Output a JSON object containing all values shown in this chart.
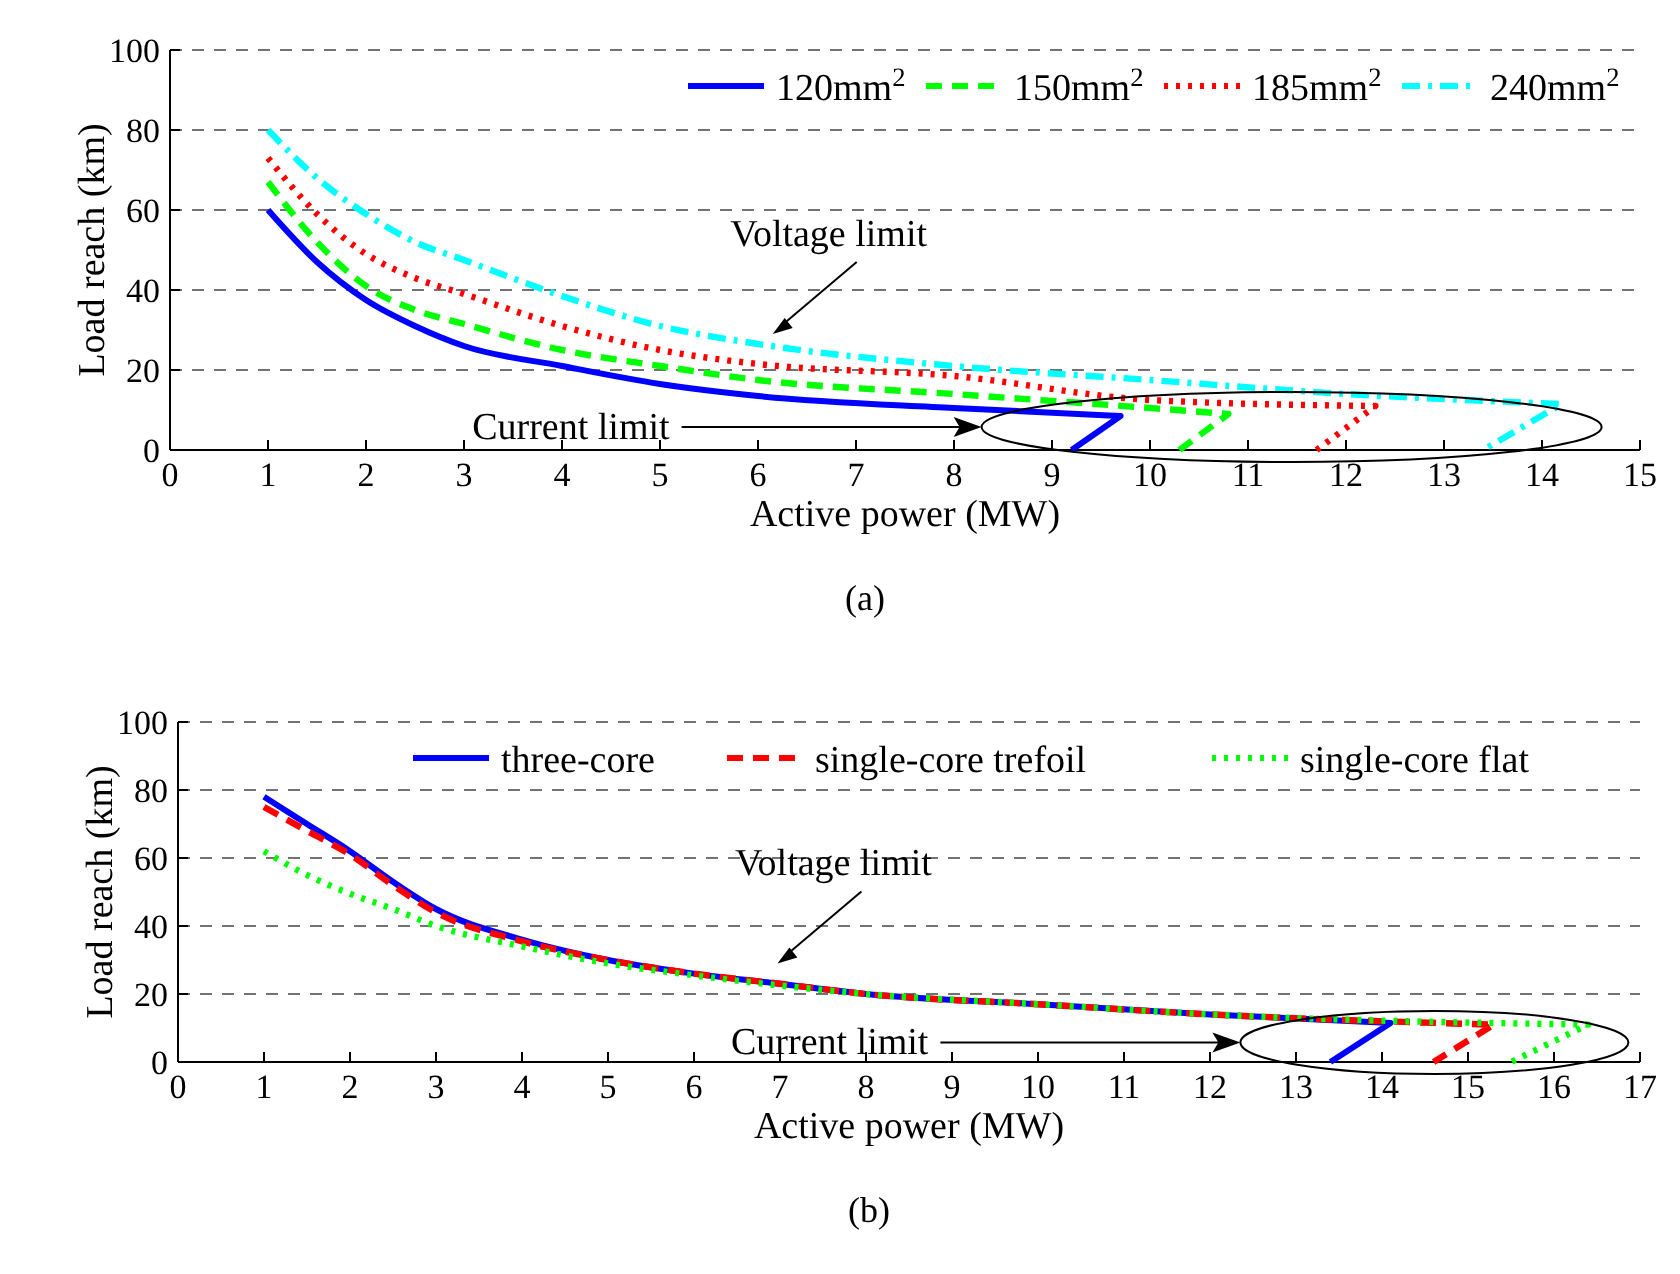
{
  "chart_data": [
    {
      "type": "line",
      "subtitle": "(a)",
      "xlabel": "Active power (MW)",
      "ylabel": "Load reach (km)",
      "xlim": [
        0,
        15
      ],
      "ylim": [
        0,
        100
      ],
      "xticks": [
        0,
        1,
        2,
        3,
        4,
        5,
        6,
        7,
        8,
        9,
        10,
        11,
        12,
        13,
        14,
        15
      ],
      "yticks": [
        0,
        20,
        40,
        60,
        80,
        100
      ],
      "grid": "y",
      "legend": "top right",
      "series": [
        {
          "name": "120mm$^{2}$",
          "color": "#0000ff",
          "line_style": "solid",
          "x": [
            1,
            1.5,
            2,
            2.5,
            3,
            4,
            5,
            6,
            8,
            9.7,
            9.2
          ],
          "values": [
            60,
            47,
            37.5,
            31,
            26,
            21,
            16.5,
            13.5,
            10.5,
            8.5,
            0
          ]
        },
        {
          "name": "150mm$^{2}$",
          "color": "#00ff00",
          "line_style": "dashed",
          "x": [
            1,
            1.5,
            2,
            2.5,
            3,
            4,
            5,
            6,
            8,
            10,
            10.8,
            10.3
          ],
          "values": [
            67,
            52,
            41,
            35,
            31.5,
            25,
            21,
            17.5,
            14,
            10.5,
            9,
            0
          ]
        },
        {
          "name": "185mm$^{2}$",
          "color": "#ff0000",
          "line_style": "dotted",
          "x": [
            1,
            1.5,
            2,
            2.5,
            3,
            4,
            5,
            6,
            8,
            10,
            12.3,
            11.7
          ],
          "values": [
            73,
            59,
            49,
            43,
            39,
            31,
            25,
            21.5,
            18.5,
            12.5,
            11,
            0
          ]
        },
        {
          "name": "240mm$^{2}$",
          "color": "#00ffff",
          "line_style": "dashdot",
          "x": [
            1,
            1.5,
            2,
            2.5,
            3,
            4,
            5,
            6,
            8,
            10,
            12,
            14.2,
            13.4
          ],
          "values": [
            80,
            68,
            59,
            52,
            47.5,
            38.5,
            31,
            26.5,
            21,
            17.5,
            14,
            11.5,
            0
          ]
        }
      ],
      "annotations": [
        "Voltage limit",
        "Current limit"
      ]
    },
    {
      "type": "line",
      "subtitle": "(b)",
      "xlabel": "Active power (MW)",
      "ylabel": "Load reach (km)",
      "xlim": [
        0,
        17
      ],
      "ylim": [
        0,
        100
      ],
      "xticks": [
        0,
        1,
        2,
        3,
        4,
        5,
        6,
        7,
        8,
        9,
        10,
        11,
        12,
        13,
        14,
        15,
        16,
        17
      ],
      "yticks": [
        0,
        20,
        40,
        60,
        80,
        100
      ],
      "grid": "y",
      "legend": "top right",
      "series": [
        {
          "name": "three-core",
          "color": "#0000ff",
          "line_style": "solid",
          "x": [
            1,
            1.5,
            2,
            2.5,
            3,
            4,
            5,
            6,
            7,
            8,
            10,
            12,
            14.1,
            13.4
          ],
          "values": [
            78,
            70,
            62,
            53,
            45,
            36,
            30,
            26,
            23,
            20,
            17,
            14,
            11.5,
            0
          ]
        },
        {
          "name": "single-core trefoil",
          "color": "#ff0000",
          "line_style": "dashed",
          "x": [
            1,
            1.5,
            2,
            2.5,
            3,
            4,
            5,
            6,
            7,
            8,
            10,
            12,
            15.3,
            14.6
          ],
          "values": [
            75,
            68,
            61,
            52,
            44,
            35.5,
            30,
            26,
            23,
            20,
            17,
            14,
            11,
            0
          ]
        },
        {
          "name": "single-core flat",
          "color": "#00ff00",
          "line_style": "dotted",
          "x": [
            1,
            1.5,
            2,
            2.5,
            3,
            4,
            5,
            6,
            7,
            8,
            10,
            12,
            16.4,
            15.5
          ],
          "values": [
            62,
            55,
            49.5,
            45,
            40,
            34,
            29,
            25.5,
            22.5,
            20,
            17,
            14,
            11,
            0
          ]
        }
      ],
      "annotations": [
        "Voltage limit",
        "Current limit"
      ]
    }
  ]
}
